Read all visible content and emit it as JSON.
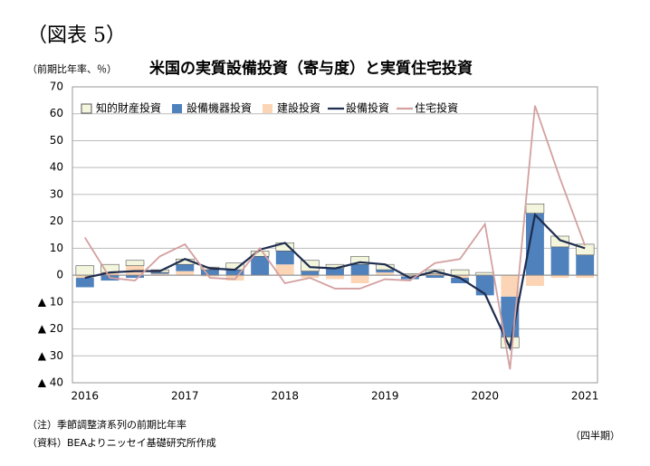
{
  "chart_data": {
    "type": "bar",
    "figure_label": "（図表 5）",
    "title": "米国の実質設備投資（寄与度）と実質住宅投資",
    "y_label": "（前期比年率、％）",
    "x_label": "（四半期）",
    "notes": [
      "（注）季節調整済系列の前期比年率",
      "（資料）BEAよりニッセイ基礎研究所作成"
    ],
    "categories": [
      "2016",
      null,
      null,
      null,
      "2017",
      null,
      null,
      null,
      "2018",
      null,
      null,
      null,
      "2019",
      null,
      null,
      null,
      "2020",
      null,
      null,
      null,
      "2021"
    ],
    "series": [
      {
        "name": "知的財産投資",
        "type": "bar",
        "color": "#f3f6dd",
        "values": [
          3.5,
          3,
          2,
          1,
          2,
          1,
          2.5,
          2,
          3,
          4,
          1.5,
          3,
          2,
          0.5,
          1.5,
          2,
          1,
          -4,
          3.5,
          4,
          4
        ]
      },
      {
        "name": "設備機器投資",
        "type": "bar",
        "color": "#4f81bd",
        "values": [
          -3.5,
          -2,
          -1,
          0.5,
          2.5,
          2,
          2,
          7,
          5,
          1.5,
          2.5,
          4,
          1,
          -1,
          -1,
          -2,
          -7.5,
          -15,
          23,
          10.5,
          7.5
        ]
      },
      {
        "name": "建設投資",
        "type": "bar",
        "color": "#fbd5b5",
        "values": [
          -1,
          1,
          3.5,
          0.5,
          1.5,
          -0.5,
          -2,
          0,
          4,
          -1,
          -1.5,
          -3,
          1,
          -0.5,
          0.5,
          -1,
          0,
          -8,
          -4,
          -1,
          -1
        ]
      },
      {
        "name": "設備投資",
        "type": "line",
        "color": "#1f2d4f",
        "values": [
          -1,
          1,
          1.5,
          1.5,
          6,
          2.5,
          2,
          9.5,
          12,
          3,
          2.5,
          4.8,
          4,
          -1,
          1.5,
          -1,
          -7,
          -27,
          22.5,
          13,
          10
        ]
      },
      {
        "name": "住宅投資",
        "type": "line",
        "color": "#d4a0a0",
        "values": [
          14,
          -1,
          -2,
          7,
          11.5,
          -1,
          -1.5,
          10,
          -3,
          -1,
          -5,
          -5,
          -1.5,
          -2,
          4.5,
          6,
          19,
          -35,
          63,
          36,
          11
        ]
      }
    ],
    "ylim": [
      -40,
      70
    ],
    "yticks": [
      {
        "value": -40,
        "label": "▲ 40"
      },
      {
        "value": -30,
        "label": "▲ 30"
      },
      {
        "value": -20,
        "label": "▲ 20"
      },
      {
        "value": -10,
        "label": "▲ 10"
      },
      0,
      10,
      20,
      30,
      40,
      50,
      60,
      70
    ],
    "grid": true,
    "legend": "top-left"
  }
}
